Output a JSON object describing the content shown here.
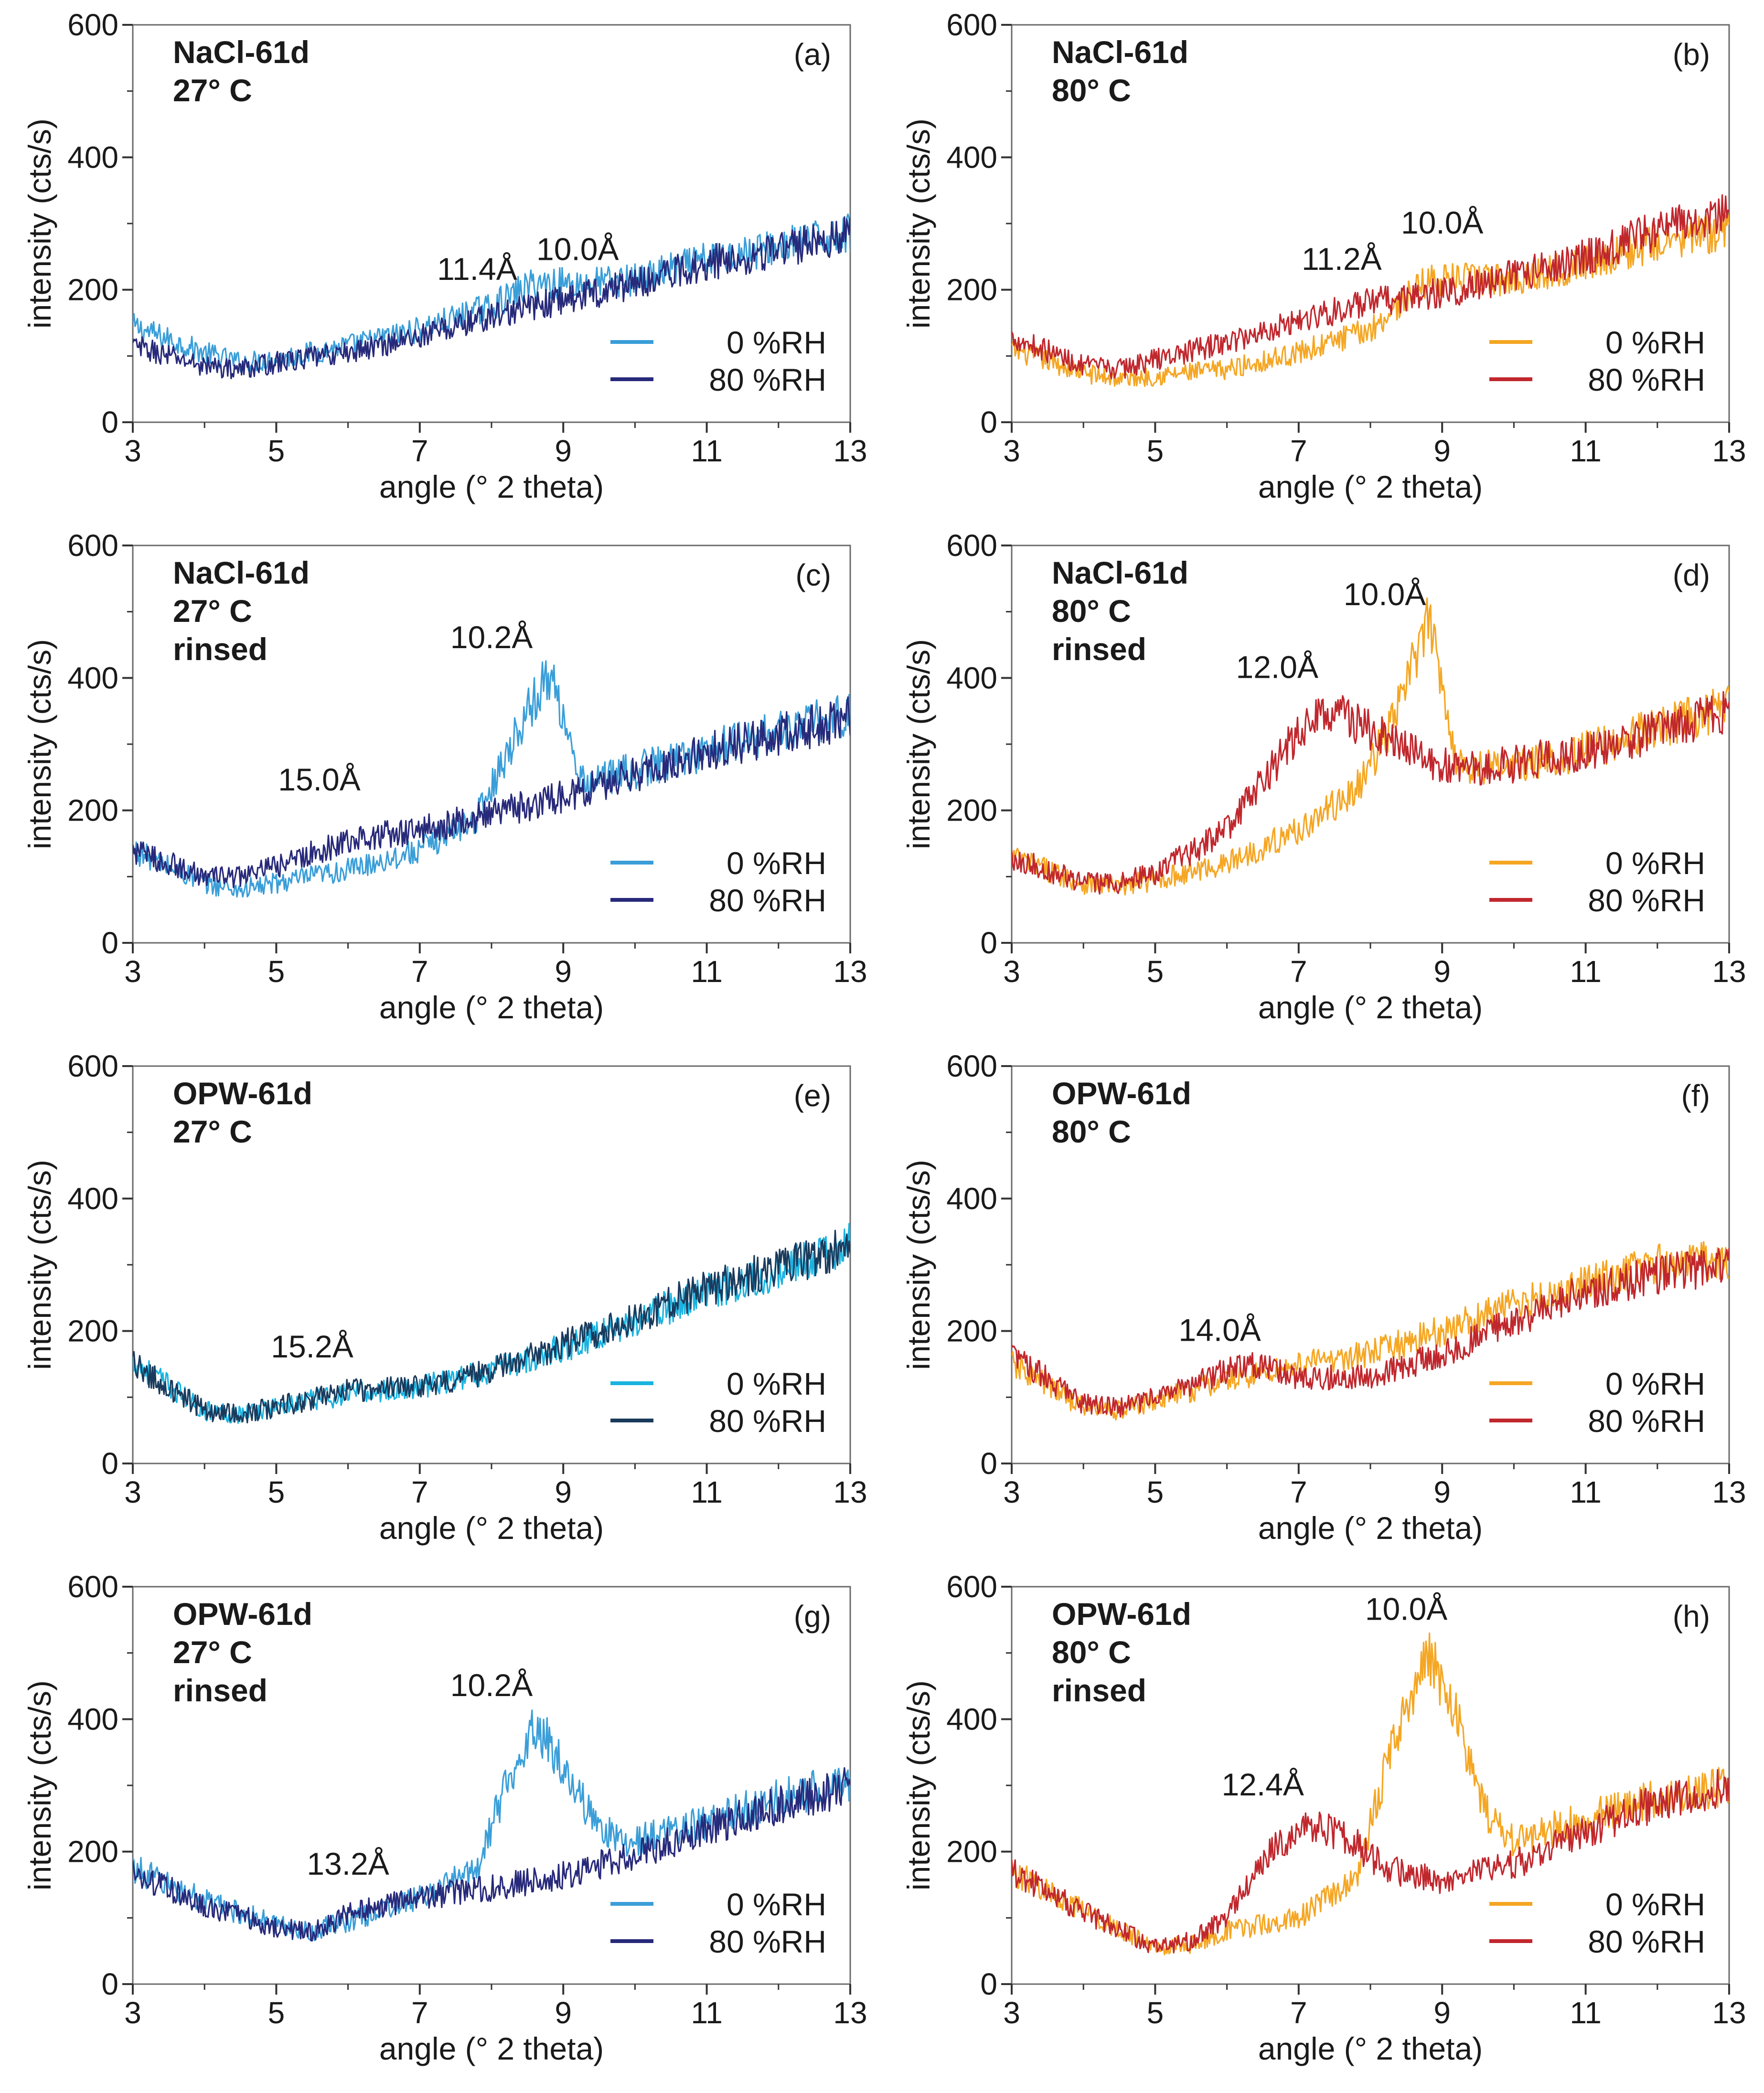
{
  "figure": {
    "x_axis_label": "angle (° 2 theta)",
    "y_axis_label": "intensity (cts/s)",
    "x_ticks": [
      "3",
      "5",
      "7",
      "9",
      "11",
      "13"
    ],
    "y_ticks": [
      "0",
      "200",
      "400",
      "600"
    ],
    "legend_entries": [
      "0 %RH",
      "80 %RH"
    ]
  },
  "colors": {
    "cool_0rh": "#3a9ed8",
    "cool_80rh": "#27297a",
    "cool_0rh_panel_e": "#1ab3e0",
    "cool_80rh_panel_e": "#1a3a5c",
    "warm_0rh": "#f5a623",
    "warm_80rh": "#c0272d"
  },
  "chart_data": [
    {
      "panel": "(a)",
      "type": "line",
      "sample_lines": [
        "NaCl-61d",
        "27° C"
      ],
      "xlim": [
        3,
        13
      ],
      "ylim": [
        0,
        600
      ],
      "series": [
        {
          "name": "0 %RH",
          "color": "cool_0rh",
          "points": [
            [
              3,
              145
            ],
            [
              4,
              105
            ],
            [
              4.5,
              90
            ],
            [
              5,
              95
            ],
            [
              6,
              115
            ],
            [
              7,
              140
            ],
            [
              8,
              175
            ],
            [
              8.6,
              210
            ],
            [
              9.3,
              210
            ],
            [
              10,
              215
            ],
            [
              11,
              245
            ],
            [
              12,
              265
            ],
            [
              13,
              285
            ]
          ]
        },
        {
          "name": "80 %RH",
          "color": "cool_80rh",
          "points": [
            [
              3,
              115
            ],
            [
              4,
              85
            ],
            [
              4.5,
              80
            ],
            [
              5,
              90
            ],
            [
              6,
              105
            ],
            [
              7,
              130
            ],
            [
              8,
              160
            ],
            [
              9,
              185
            ],
            [
              10,
              210
            ],
            [
              11,
              240
            ],
            [
              12,
              260
            ],
            [
              13,
              285
            ]
          ]
        }
      ],
      "annotations": [
        {
          "text": "11.4Å",
          "x": 7.8,
          "y": 215
        },
        {
          "text": "10.0Å",
          "x": 9.2,
          "y": 245
        }
      ]
    },
    {
      "panel": "(b)",
      "type": "line",
      "sample_lines": [
        "NaCl-61d",
        "80° C"
      ],
      "xlim": [
        3,
        13
      ],
      "ylim": [
        0,
        600
      ],
      "series": [
        {
          "name": "0 %RH",
          "color": "warm_0rh",
          "points": [
            [
              3,
              110
            ],
            [
              4,
              75
            ],
            [
              4.5,
              65
            ],
            [
              5,
              70
            ],
            [
              6,
              80
            ],
            [
              7,
              105
            ],
            [
              8,
              140
            ],
            [
              8.8,
              215
            ],
            [
              9.3,
              215
            ],
            [
              10,
              215
            ],
            [
              11,
              240
            ],
            [
              12,
              270
            ],
            [
              13,
              290
            ]
          ]
        },
        {
          "name": "80 %RH",
          "color": "warm_80rh",
          "points": [
            [
              3,
              130
            ],
            [
              4,
              85
            ],
            [
              4.5,
              80
            ],
            [
              5,
              95
            ],
            [
              6,
              120
            ],
            [
              7,
              155
            ],
            [
              8,
              180
            ],
            [
              9,
              195
            ],
            [
              10,
              220
            ],
            [
              11,
              250
            ],
            [
              12,
              290
            ],
            [
              13,
              320
            ]
          ]
        }
      ],
      "annotations": [
        {
          "text": "11.2Å",
          "x": 7.6,
          "y": 230
        },
        {
          "text": "10.0Å",
          "x": 9.0,
          "y": 285
        }
      ]
    },
    {
      "panel": "(c)",
      "type": "line",
      "sample_lines": [
        "NaCl-61d",
        "27° C",
        "rinsed"
      ],
      "xlim": [
        3,
        13
      ],
      "ylim": [
        0,
        600
      ],
      "series": [
        {
          "name": "0 %RH",
          "color": "cool_0rh",
          "points": [
            [
              3,
              140
            ],
            [
              4,
              90
            ],
            [
              4.5,
              80
            ],
            [
              5,
              90
            ],
            [
              6,
              110
            ],
            [
              7,
              140
            ],
            [
              7.8,
              190
            ],
            [
              8.4,
              330
            ],
            [
              8.8,
              405
            ],
            [
              9.0,
              350
            ],
            [
              9.2,
              240
            ],
            [
              10,
              260
            ],
            [
              11,
              290
            ],
            [
              12,
              320
            ],
            [
              13,
              345
            ]
          ]
        },
        {
          "name": "80 %RH",
          "color": "cool_80rh",
          "points": [
            [
              3,
              140
            ],
            [
              4,
              100
            ],
            [
              4.5,
              100
            ],
            [
              5,
              115
            ],
            [
              6,
              155
            ],
            [
              7,
              170
            ],
            [
              8,
              195
            ],
            [
              9,
              220
            ],
            [
              10,
              255
            ],
            [
              11,
              290
            ],
            [
              12,
              315
            ],
            [
              13,
              340
            ]
          ]
        }
      ],
      "annotations": [
        {
          "text": "15.0Å",
          "x": 5.6,
          "y": 230
        },
        {
          "text": "10.2Å",
          "x": 8.0,
          "y": 445
        }
      ]
    },
    {
      "panel": "(d)",
      "type": "line",
      "sample_lines": [
        "NaCl-61d",
        "80° C",
        "rinsed"
      ],
      "xlim": [
        3,
        13
      ],
      "ylim": [
        0,
        600
      ],
      "series": [
        {
          "name": "0 %RH",
          "color": "warm_0rh",
          "points": [
            [
              3,
              130
            ],
            [
              4,
              90
            ],
            [
              4.5,
              85
            ],
            [
              5,
              95
            ],
            [
              6,
              120
            ],
            [
              7,
              170
            ],
            [
              7.8,
              230
            ],
            [
              8.3,
              330
            ],
            [
              8.8,
              485
            ],
            [
              9.0,
              400
            ],
            [
              9.2,
              270
            ],
            [
              10,
              265
            ],
            [
              11,
              290
            ],
            [
              12,
              325
            ],
            [
              13,
              355
            ]
          ]
        },
        {
          "name": "80 %RH",
          "color": "warm_80rh",
          "points": [
            [
              3,
              130
            ],
            [
              4,
              90
            ],
            [
              4.5,
              90
            ],
            [
              5,
              105
            ],
            [
              6,
              170
            ],
            [
              6.8,
              290
            ],
            [
              7.4,
              355
            ],
            [
              7.9,
              325
            ],
            [
              8.5,
              290
            ],
            [
              9.2,
              260
            ],
            [
              10,
              270
            ],
            [
              11,
              290
            ],
            [
              12,
              320
            ],
            [
              13,
              350
            ]
          ]
        }
      ],
      "annotations": [
        {
          "text": "12.0Å",
          "x": 6.7,
          "y": 400
        },
        {
          "text": "10.0Å",
          "x": 8.2,
          "y": 510
        }
      ]
    },
    {
      "panel": "(e)",
      "type": "line",
      "sample_lines": [
        "OPW-61d",
        "27° C"
      ],
      "xlim": [
        3,
        13
      ],
      "ylim": [
        0,
        600
      ],
      "series": [
        {
          "name": "0 %RH",
          "color": "cool_0rh_panel_e",
          "points": [
            [
              3,
              155
            ],
            [
              4,
              80
            ],
            [
              4.5,
              75
            ],
            [
              5,
              85
            ],
            [
              6,
              105
            ],
            [
              7,
              115
            ],
            [
              8,
              140
            ],
            [
              9,
              175
            ],
            [
              10,
              215
            ],
            [
              11,
              260
            ],
            [
              12,
              290
            ],
            [
              13,
              330
            ]
          ]
        },
        {
          "name": "80 %RH",
          "color": "cool_80rh_panel_e",
          "points": [
            [
              3,
              150
            ],
            [
              4,
              80
            ],
            [
              4.5,
              75
            ],
            [
              5,
              85
            ],
            [
              6,
              110
            ],
            [
              7,
              115
            ],
            [
              8,
              140
            ],
            [
              9,
              180
            ],
            [
              10,
              220
            ],
            [
              11,
              265
            ],
            [
              12,
              295
            ],
            [
              13,
              330
            ]
          ]
        }
      ],
      "annotations": [
        {
          "text": "15.2Å",
          "x": 5.5,
          "y": 160
        }
      ]
    },
    {
      "panel": "(f)",
      "type": "line",
      "sample_lines": [
        "OPW-61d",
        "80° C"
      ],
      "xlim": [
        3,
        13
      ],
      "ylim": [
        0,
        600
      ],
      "series": [
        {
          "name": "0 %RH",
          "color": "warm_0rh",
          "points": [
            [
              3,
              150
            ],
            [
              4,
              85
            ],
            [
              4.5,
              80
            ],
            [
              5,
              95
            ],
            [
              6,
              125
            ],
            [
              7,
              150
            ],
            [
              8,
              165
            ],
            [
              9,
              200
            ],
            [
              10,
              240
            ],
            [
              11,
              270
            ],
            [
              12,
              300
            ],
            [
              13,
              310
            ]
          ]
        },
        {
          "name": "80 %RH",
          "color": "warm_80rh",
          "points": [
            [
              3,
              165
            ],
            [
              4,
              90
            ],
            [
              4.5,
              85
            ],
            [
              5,
              100
            ],
            [
              6,
              140
            ],
            [
              6.4,
              150
            ],
            [
              7,
              130
            ],
            [
              8,
              130
            ],
            [
              9,
              165
            ],
            [
              10,
              215
            ],
            [
              11,
              260
            ],
            [
              12,
              285
            ],
            [
              13,
              300
            ]
          ]
        }
      ],
      "annotations": [
        {
          "text": "14.0Å",
          "x": 5.9,
          "y": 185
        }
      ]
    },
    {
      "panel": "(g)",
      "type": "line",
      "sample_lines": [
        "OPW-61d",
        "27° C",
        "rinsed"
      ],
      "xlim": [
        3,
        13
      ],
      "ylim": [
        0,
        600
      ],
      "series": [
        {
          "name": "0 %RH",
          "color": "cool_0rh",
          "points": [
            [
              3,
              175
            ],
            [
              4,
              125
            ],
            [
              5,
              90
            ],
            [
              5.5,
              80
            ],
            [
              6,
              95
            ],
            [
              7,
              130
            ],
            [
              7.8,
              175
            ],
            [
              8.2,
              300
            ],
            [
              8.6,
              395
            ],
            [
              9.0,
              330
            ],
            [
              9.5,
              230
            ],
            [
              10,
              215
            ],
            [
              11,
              245
            ],
            [
              12,
              280
            ],
            [
              13,
              305
            ]
          ]
        },
        {
          "name": "80 %RH",
          "color": "cool_80rh",
          "points": [
            [
              3,
              170
            ],
            [
              4,
              120
            ],
            [
              5,
              85
            ],
            [
              5.5,
              80
            ],
            [
              6,
              105
            ],
            [
              7,
              130
            ],
            [
              8,
              145
            ],
            [
              9,
              165
            ],
            [
              10,
              195
            ],
            [
              11,
              235
            ],
            [
              12,
              270
            ],
            [
              13,
              300
            ]
          ]
        }
      ],
      "annotations": [
        {
          "text": "13.2Å",
          "x": 6.0,
          "y": 165
        },
        {
          "text": "10.2Å",
          "x": 8.0,
          "y": 435
        }
      ]
    },
    {
      "panel": "(h)",
      "type": "line",
      "sample_lines": [
        "OPW-61d",
        "80° C",
        "rinsed"
      ],
      "xlim": [
        3,
        13
      ],
      "ylim": [
        0,
        600
      ],
      "series": [
        {
          "name": "0 %RH",
          "color": "warm_0rh",
          "points": [
            [
              3,
              170
            ],
            [
              4,
              110
            ],
            [
              5,
              55
            ],
            [
              5.5,
              60
            ],
            [
              6,
              80
            ],
            [
              7,
              100
            ],
            [
              7.8,
              160
            ],
            [
              8.3,
              360
            ],
            [
              8.8,
              505
            ],
            [
              9.2,
              400
            ],
            [
              9.6,
              260
            ],
            [
              10,
              215
            ],
            [
              11,
              250
            ],
            [
              12,
              280
            ],
            [
              13,
              300
            ]
          ]
        },
        {
          "name": "80 %RH",
          "color": "warm_80rh",
          "points": [
            [
              3,
              170
            ],
            [
              4,
              110
            ],
            [
              5,
              55
            ],
            [
              5.5,
              65
            ],
            [
              6,
              100
            ],
            [
              6.6,
              200
            ],
            [
              7.2,
              240
            ],
            [
              7.7,
              220
            ],
            [
              8.2,
              175
            ],
            [
              9,
              155
            ],
            [
              10,
              180
            ],
            [
              11,
              230
            ],
            [
              12,
              275
            ],
            [
              13,
              300
            ]
          ]
        }
      ],
      "annotations": [
        {
          "text": "12.4Å",
          "x": 6.5,
          "y": 285
        },
        {
          "text": "10.0Å",
          "x": 8.5,
          "y": 550
        }
      ]
    }
  ]
}
